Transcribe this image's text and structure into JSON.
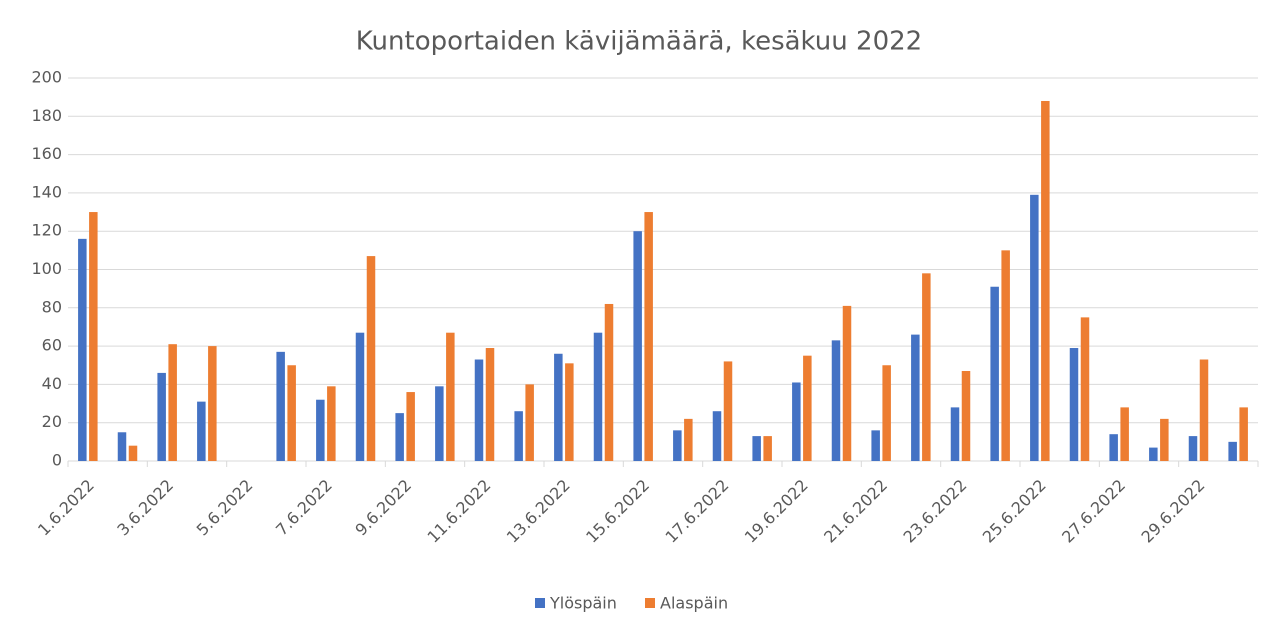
{
  "chart_data": {
    "type": "bar",
    "title": "Kuntoportaiden kävijämäärä, kesäkuu 2022",
    "categories": [
      "1.6.2022",
      null,
      "3.6.2022",
      null,
      "5.6.2022",
      null,
      "7.6.2022",
      null,
      "9.6.2022",
      null,
      "11.6.2022",
      null,
      "13.6.2022",
      null,
      "15.6.2022",
      null,
      "17.6.2022",
      null,
      "19.6.2022",
      null,
      "21.6.2022",
      null,
      "23.6.2022",
      null,
      "25.6.2022",
      null,
      "27.6.2022",
      null,
      "29.6.2022",
      null
    ],
    "series": [
      {
        "name": "Ylöspäin",
        "color": "#4472c4",
        "values": [
          116,
          15,
          46,
          31,
          null,
          57,
          32,
          67,
          25,
          39,
          53,
          26,
          56,
          67,
          120,
          16,
          26,
          13,
          41,
          63,
          16,
          66,
          28,
          91,
          139,
          59,
          14,
          7,
          13,
          10
        ]
      },
      {
        "name": "Alaspäin",
        "color": "#ed7d31",
        "values": [
          130,
          8,
          61,
          60,
          null,
          50,
          39,
          107,
          36,
          67,
          59,
          40,
          51,
          82,
          130,
          22,
          52,
          13,
          55,
          81,
          50,
          98,
          47,
          110,
          188,
          75,
          28,
          22,
          53,
          28
        ]
      }
    ],
    "ylim": [
      0,
      200
    ],
    "yticks": [
      0,
      20,
      40,
      60,
      80,
      100,
      120,
      140,
      160,
      180,
      200
    ],
    "grid": true,
    "legend": "bottom"
  }
}
